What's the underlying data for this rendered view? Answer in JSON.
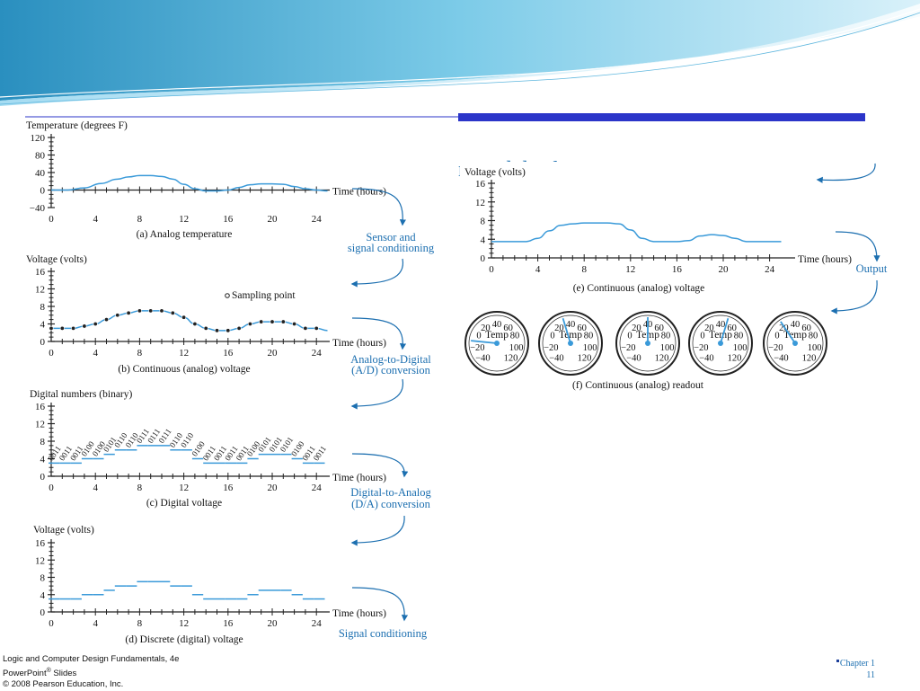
{
  "slide": {
    "title_fragment": "nt and display"
  },
  "chart_data": [
    {
      "type": "line",
      "id": "a",
      "ylabel": "Temperature (degrees F)",
      "xlabel": "Time (hours)",
      "caption": "(a) Analog temperature",
      "y_ticks": [
        "120",
        "80",
        "40",
        "0",
        "−40"
      ],
      "x_ticks": [
        "0",
        "4",
        "8",
        "12",
        "16",
        "20",
        "24"
      ],
      "ylim": [
        -40,
        120
      ],
      "x": [
        0,
        1.5,
        3,
        4.5,
        6,
        7,
        8,
        9,
        10,
        11,
        12,
        13,
        14,
        15,
        16,
        17,
        18,
        19,
        20,
        21,
        22,
        23,
        24,
        25
      ],
      "y": [
        0,
        0,
        5,
        15,
        25,
        30,
        33,
        33,
        31,
        25,
        13,
        3,
        -2,
        -2,
        0,
        6,
        12,
        14,
        14,
        13,
        8,
        3,
        0,
        -2
      ]
    },
    {
      "type": "line",
      "id": "b",
      "ylabel": "Voltage (volts)",
      "xlabel": "Time (hours)",
      "caption": "(b) Continuous (analog) voltage",
      "legend": "Sampling point",
      "y_ticks": [
        "16",
        "12",
        "8",
        "4",
        "0"
      ],
      "x_ticks": [
        "0",
        "4",
        "8",
        "12",
        "16",
        "20",
        "24"
      ],
      "ylim": [
        0,
        16
      ],
      "x": [
        0,
        1,
        2,
        3,
        4,
        5,
        6,
        7,
        8,
        9,
        10,
        11,
        12,
        13,
        14,
        15,
        16,
        17,
        18,
        19,
        20,
        21,
        22,
        23,
        24,
        25
      ],
      "y": [
        3,
        3,
        3,
        3.5,
        4,
        5,
        6,
        6.5,
        7,
        7,
        7,
        6.5,
        5.5,
        4,
        3,
        2.5,
        2.5,
        3,
        4,
        4.5,
        4.5,
        4.5,
        4,
        3,
        3,
        2.5
      ],
      "sample_x": [
        0,
        1,
        2,
        3,
        4,
        5,
        6,
        7,
        8,
        9,
        10,
        11,
        12,
        13,
        14,
        15,
        16,
        17,
        18,
        19,
        20,
        21,
        22,
        23,
        24
      ]
    },
    {
      "type": "step",
      "id": "c",
      "ylabel": "Digital numbers (binary)",
      "xlabel": "Time (hours)",
      "caption": "(c) Digital voltage",
      "y_ticks": [
        "16",
        "12",
        "8",
        "4",
        "0"
      ],
      "x_ticks": [
        "0",
        "4",
        "8",
        "12",
        "16",
        "20",
        "24"
      ],
      "ylim": [
        0,
        16
      ],
      "x": [
        0,
        1,
        2,
        3,
        4,
        5,
        6,
        7,
        8,
        9,
        10,
        11,
        12,
        13,
        14,
        15,
        16,
        17,
        18,
        19,
        20,
        21,
        22,
        23,
        24
      ],
      "y": [
        3,
        3,
        3,
        4,
        4,
        5,
        6,
        6,
        7,
        7,
        7,
        6,
        6,
        4,
        3,
        3,
        3,
        3,
        4,
        5,
        5,
        5,
        4,
        3,
        3
      ],
      "labels": [
        "0011",
        "0011",
        "0011",
        "0100",
        "0100",
        "0101",
        "0110",
        "0110",
        "0111",
        "0111",
        "0111",
        "0110",
        "0110",
        "0100",
        "0011",
        "0011",
        "0011",
        "0011",
        "0100",
        "0101",
        "0101",
        "0101",
        "0100",
        "0011",
        "0011"
      ]
    },
    {
      "type": "step",
      "id": "d",
      "ylabel": "Voltage (volts)",
      "xlabel": "Time (hours)",
      "caption": "(d) Discrete (digital) voltage",
      "y_ticks": [
        "16",
        "12",
        "8",
        "4",
        "0"
      ],
      "x_ticks": [
        "0",
        "4",
        "8",
        "12",
        "16",
        "20",
        "24"
      ],
      "ylim": [
        0,
        16
      ],
      "x": [
        0,
        1,
        2,
        3,
        4,
        5,
        6,
        7,
        8,
        9,
        10,
        11,
        12,
        13,
        14,
        15,
        16,
        17,
        18,
        19,
        20,
        21,
        22,
        23,
        24
      ],
      "y": [
        3,
        3,
        3,
        4,
        4,
        5,
        6,
        6,
        7,
        7,
        7,
        6,
        6,
        4,
        3,
        3,
        3,
        3,
        4,
        5,
        5,
        5,
        4,
        3,
        3
      ]
    },
    {
      "type": "line",
      "id": "e",
      "ylabel": "Voltage (volts)",
      "xlabel": "Time (hours)",
      "caption": "(e) Continuous (analog) voltage",
      "y_ticks": [
        "16",
        "12",
        "8",
        "4",
        "0"
      ],
      "x_ticks": [
        "0",
        "4",
        "8",
        "12",
        "16",
        "20",
        "24"
      ],
      "ylim": [
        0,
        16
      ],
      "x": [
        0,
        3,
        4,
        5,
        6,
        7,
        8,
        9,
        10,
        11,
        12,
        13,
        14,
        15,
        16,
        17,
        18,
        19,
        20,
        21,
        22,
        23,
        25
      ],
      "y": [
        3.5,
        3.5,
        4.2,
        5.8,
        7,
        7.3,
        7.5,
        7.5,
        7.5,
        7.3,
        6,
        4.2,
        3.5,
        3.5,
        3.5,
        3.7,
        4.7,
        5,
        4.8,
        4.2,
        3.5,
        3.5,
        3.5
      ]
    }
  ],
  "flow": {
    "labels": [
      "Sensor and",
      "signal conditioning",
      "Analog-to-Digital",
      "(A/D) conversion",
      "Digital-to-Analog",
      "(D/A) conversion",
      "Signal conditioning",
      "Output"
    ]
  },
  "gauges": {
    "caption": "(f) Continuous (analog) readout",
    "label": "Temp",
    "scale": [
      "−40",
      "−20",
      "0",
      "20",
      "40",
      "60",
      "80",
      "100",
      "120"
    ],
    "readings": [
      3,
      7,
      8,
      9,
      6
    ]
  },
  "footer": {
    "line1": "Logic and Computer Design Fundamentals, 4e",
    "line2": "PowerPoint",
    "line2_sup": "®",
    "line2_rest": " Slides",
    "line3": "© 2008 Pearson Education, Inc.",
    "chapter": "Chapter 1",
    "page": "11"
  },
  "colors": {
    "curve": "#3a9ad9",
    "flow_text": "#1c6fb0",
    "accent_bar": "#2b35c9",
    "banner_dark": "#1d7fa8",
    "banner_light": "#bfe6f5"
  }
}
